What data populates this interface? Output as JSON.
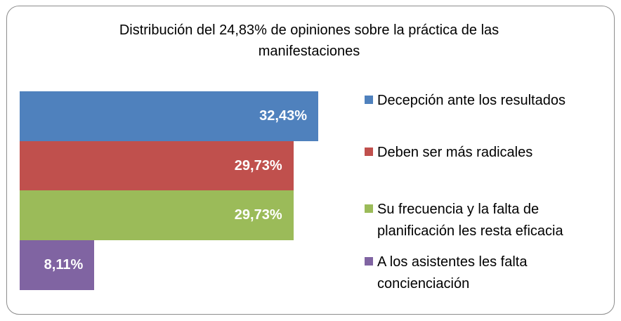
{
  "chart_data": {
    "type": "bar",
    "orientation": "horizontal",
    "title": "Distribución del 24,83% de opiniones sobre la práctica de las manifestaciones",
    "series": [
      {
        "name": "Decepción ante los resultados",
        "color": "#4f81bd",
        "values": [
          32.43
        ],
        "value_labels": [
          "32,43%"
        ]
      },
      {
        "name": "Deben ser más radicales",
        "color": "#c0504d",
        "values": [
          29.73
        ],
        "value_labels": [
          "29,73%"
        ]
      },
      {
        "name": "Su frecuencia y la falta de planificación les resta eficacia",
        "color": "#9bbb59",
        "values": [
          29.73
        ],
        "value_labels": [
          "29,73%"
        ]
      },
      {
        "name": "A los asistentes les falta concienciación",
        "color": "#8064a2",
        "values": [
          8.11
        ],
        "value_labels": [
          "8,11%"
        ]
      }
    ],
    "legend": "right"
  }
}
